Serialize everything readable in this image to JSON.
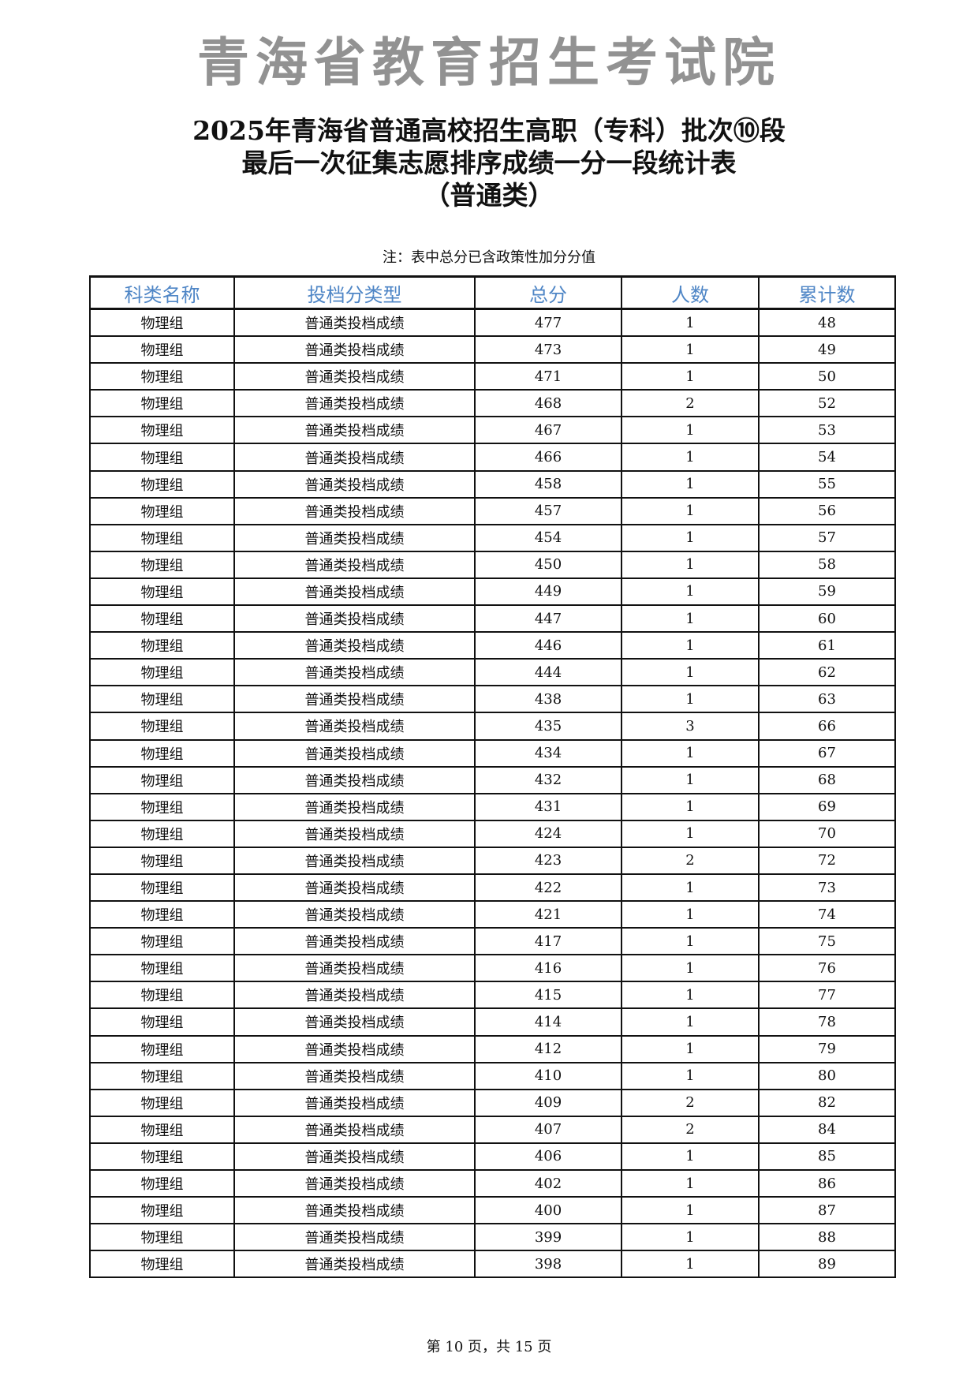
{
  "title": {
    "line1": "2025年青海省普通高校招生高职（专科）批次⑩段",
    "line2": "最后一次征集志愿排序成绩一分一段统计表",
    "line3": "（普通类）"
  },
  "note": "注：表中总分已含政策性加分分值",
  "table": {
    "headers": [
      "科类名称",
      "投档分类型",
      "总分",
      "人数",
      "累计数"
    ],
    "header_color": "#4f86c6",
    "rows": [
      [
        "物理组",
        "普通类投档成绩",
        "477",
        "1",
        "48"
      ],
      [
        "物理组",
        "普通类投档成绩",
        "473",
        "1",
        "49"
      ],
      [
        "物理组",
        "普通类投档成绩",
        "471",
        "1",
        "50"
      ],
      [
        "物理组",
        "普通类投档成绩",
        "468",
        "2",
        "52"
      ],
      [
        "物理组",
        "普通类投档成绩",
        "467",
        "1",
        "53"
      ],
      [
        "物理组",
        "普通类投档成绩",
        "466",
        "1",
        "54"
      ],
      [
        "物理组",
        "普通类投档成绩",
        "458",
        "1",
        "55"
      ],
      [
        "物理组",
        "普通类投档成绩",
        "457",
        "1",
        "56"
      ],
      [
        "物理组",
        "普通类投档成绩",
        "454",
        "1",
        "57"
      ],
      [
        "物理组",
        "普通类投档成绩",
        "450",
        "1",
        "58"
      ],
      [
        "物理组",
        "普通类投档成绩",
        "449",
        "1",
        "59"
      ],
      [
        "物理组",
        "普通类投档成绩",
        "447",
        "1",
        "60"
      ],
      [
        "物理组",
        "普通类投档成绩",
        "446",
        "1",
        "61"
      ],
      [
        "物理组",
        "普通类投档成绩",
        "444",
        "1",
        "62"
      ],
      [
        "物理组",
        "普通类投档成绩",
        "438",
        "1",
        "63"
      ],
      [
        "物理组",
        "普通类投档成绩",
        "435",
        "3",
        "66"
      ],
      [
        "物理组",
        "普通类投档成绩",
        "434",
        "1",
        "67"
      ],
      [
        "物理组",
        "普通类投档成绩",
        "432",
        "1",
        "68"
      ],
      [
        "物理组",
        "普通类投档成绩",
        "431",
        "1",
        "69"
      ],
      [
        "物理组",
        "普通类投档成绩",
        "424",
        "1",
        "70"
      ],
      [
        "物理组",
        "普通类投档成绩",
        "423",
        "2",
        "72"
      ],
      [
        "物理组",
        "普通类投档成绩",
        "422",
        "1",
        "73"
      ],
      [
        "物理组",
        "普通类投档成绩",
        "421",
        "1",
        "74"
      ],
      [
        "物理组",
        "普通类投档成绩",
        "417",
        "1",
        "75"
      ],
      [
        "物理组",
        "普通类投档成绩",
        "416",
        "1",
        "76"
      ],
      [
        "物理组",
        "普通类投档成绩",
        "415",
        "1",
        "77"
      ],
      [
        "物理组",
        "普通类投档成绩",
        "414",
        "1",
        "78"
      ],
      [
        "物理组",
        "普通类投档成绩",
        "412",
        "1",
        "79"
      ],
      [
        "物理组",
        "普通类投档成绩",
        "410",
        "1",
        "80"
      ],
      [
        "物理组",
        "普通类投档成绩",
        "409",
        "2",
        "82"
      ],
      [
        "物理组",
        "普通类投档成绩",
        "407",
        "2",
        "84"
      ],
      [
        "物理组",
        "普通类投档成绩",
        "406",
        "1",
        "85"
      ],
      [
        "物理组",
        "普通类投档成绩",
        "402",
        "1",
        "86"
      ],
      [
        "物理组",
        "普通类投档成绩",
        "400",
        "1",
        "87"
      ],
      [
        "物理组",
        "普通类投档成绩",
        "399",
        "1",
        "88"
      ],
      [
        "物理组",
        "普通类投档成绩",
        "398",
        "1",
        "89"
      ]
    ]
  },
  "watermark": "青海省教育招生考试院",
  "footer": "第 10 页，共 15 页"
}
